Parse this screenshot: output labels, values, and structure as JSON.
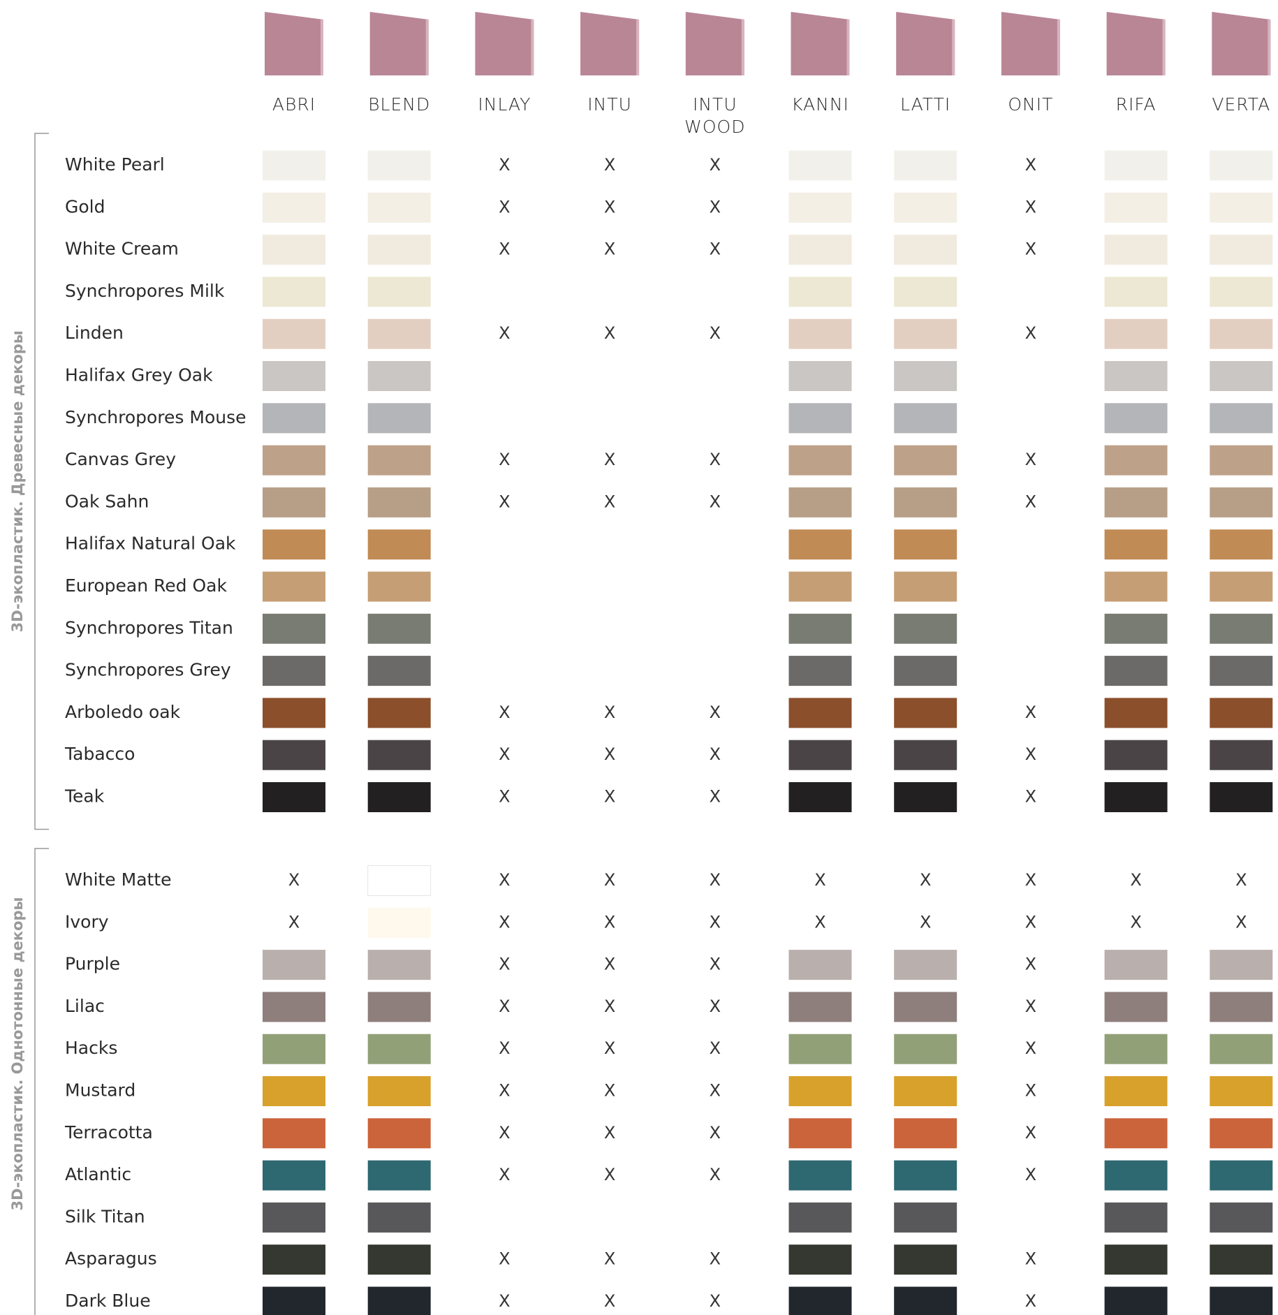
{
  "columns": [
    "ABRI",
    "BLEND",
    "INLAY",
    "INTU",
    "INTU\nWOOD",
    "KANNI",
    "LATTI",
    "ONIT",
    "RIFA",
    "VERTA"
  ],
  "groups": [
    {
      "label": "3D-экопластик. Древесные декоры",
      "rows": [
        {
          "name": "White Pearl",
          "color": "#f2f0eb",
          "cells": [
            "swatch",
            "swatch",
            "X",
            "X",
            "X",
            "swatch",
            "swatch",
            "X",
            "swatch",
            "swatch"
          ]
        },
        {
          "name": "Gold",
          "color": "#f3efe4",
          "cells": [
            "swatch",
            "swatch",
            "X",
            "X",
            "X",
            "swatch",
            "swatch",
            "X",
            "swatch",
            "swatch"
          ]
        },
        {
          "name": "White Cream",
          "color": "#f1eadf",
          "cells": [
            "swatch",
            "swatch",
            "X",
            "X",
            "X",
            "swatch",
            "swatch",
            "X",
            "swatch",
            "swatch"
          ]
        },
        {
          "name": "Synchropores Milk",
          "color": "#ece8d3",
          "cells": [
            "swatch",
            "swatch",
            null,
            null,
            null,
            "swatch",
            "swatch",
            null,
            "swatch",
            "swatch"
          ]
        },
        {
          "name": "Linden",
          "color": "#e3cfc2",
          "cells": [
            "swatch",
            "swatch",
            "X",
            "X",
            "X",
            "swatch",
            "swatch",
            "X",
            "swatch",
            "swatch"
          ]
        },
        {
          "name": "Halifax Grey Oak",
          "color": "#c9c6c3",
          "cells": [
            "swatch",
            "swatch",
            null,
            null,
            null,
            "swatch",
            "swatch",
            null,
            "swatch",
            "swatch"
          ]
        },
        {
          "name": "Synchropores Mouse",
          "color": "#b4b5b8",
          "cells": [
            "swatch",
            "swatch",
            null,
            null,
            null,
            "swatch",
            "swatch",
            null,
            "swatch",
            "swatch"
          ]
        },
        {
          "name": "Canvas Grey",
          "color": "#bea189",
          "cells": [
            "swatch",
            "swatch",
            "X",
            "X",
            "X",
            "swatch",
            "swatch",
            "X",
            "swatch",
            "swatch"
          ]
        },
        {
          "name": "Oak Sahn",
          "color": "#b79f87",
          "cells": [
            "swatch",
            "swatch",
            "X",
            "X",
            "X",
            "swatch",
            "swatch",
            "X",
            "swatch",
            "swatch"
          ]
        },
        {
          "name": "Halifax Natural Oak",
          "color": "#c18b55",
          "cells": [
            "swatch",
            "swatch",
            null,
            null,
            null,
            "swatch",
            "swatch",
            null,
            "swatch",
            "swatch"
          ]
        },
        {
          "name": "European Red Oak",
          "color": "#c69e75",
          "cells": [
            "swatch",
            "swatch",
            null,
            null,
            null,
            "swatch",
            "swatch",
            null,
            "swatch",
            "swatch"
          ]
        },
        {
          "name": "Synchropores Titan",
          "color": "#787c72",
          "cells": [
            "swatch",
            "swatch",
            null,
            null,
            null,
            "swatch",
            "swatch",
            null,
            "swatch",
            "swatch"
          ]
        },
        {
          "name": "Synchropores Grey",
          "color": "#6c6a68",
          "cells": [
            "swatch",
            "swatch",
            null,
            null,
            null,
            "swatch",
            "swatch",
            null,
            "swatch",
            "swatch"
          ]
        },
        {
          "name": "Arboledo oak",
          "color": "#8b4f2b",
          "cells": [
            "swatch",
            "swatch",
            "X",
            "X",
            "X",
            "swatch",
            "swatch",
            "X",
            "swatch",
            "swatch"
          ]
        },
        {
          "name": "Tabacco",
          "color": "#4a4446",
          "cells": [
            "swatch",
            "swatch",
            "X",
            "X",
            "X",
            "swatch",
            "swatch",
            "X",
            "swatch",
            "swatch"
          ]
        },
        {
          "name": "Teak",
          "color": "#222020",
          "cells": [
            "swatch",
            "swatch",
            "X",
            "X",
            "X",
            "swatch",
            "swatch",
            "X",
            "swatch",
            "swatch"
          ]
        }
      ]
    },
    {
      "label": "3D-экопластик. Однотонные декоры",
      "rows": [
        {
          "name": "White Matte",
          "color": "#ffffff",
          "cells": [
            "X",
            "swatch",
            "X",
            "X",
            "X",
            "X",
            "X",
            "X",
            "X",
            "X"
          ]
        },
        {
          "name": "Ivory",
          "color": "#fff8ec",
          "cells": [
            "X",
            "swatch",
            "X",
            "X",
            "X",
            "X",
            "X",
            "X",
            "X",
            "X"
          ]
        },
        {
          "name": "Purple",
          "color": "#b9afac",
          "cells": [
            "swatch",
            "swatch",
            "X",
            "X",
            "X",
            "swatch",
            "swatch",
            "X",
            "swatch",
            "swatch"
          ]
        },
        {
          "name": "Lilac",
          "color": "#8e7e7c",
          "cells": [
            "swatch",
            "swatch",
            "X",
            "X",
            "X",
            "swatch",
            "swatch",
            "X",
            "swatch",
            "swatch"
          ]
        },
        {
          "name": "Hacks",
          "color": "#92a078",
          "cells": [
            "swatch",
            "swatch",
            "X",
            "X",
            "X",
            "swatch",
            "swatch",
            "X",
            "swatch",
            "swatch"
          ]
        },
        {
          "name": "Mustard",
          "color": "#d8a12b",
          "cells": [
            "swatch",
            "swatch",
            "X",
            "X",
            "X",
            "swatch",
            "swatch",
            "X",
            "swatch",
            "swatch"
          ]
        },
        {
          "name": "Terracotta",
          "color": "#cb643a",
          "cells": [
            "swatch",
            "swatch",
            "X",
            "X",
            "X",
            "swatch",
            "swatch",
            "X",
            "swatch",
            "swatch"
          ]
        },
        {
          "name": "Atlantic",
          "color": "#2e6870",
          "cells": [
            "swatch",
            "swatch",
            "X",
            "X",
            "X",
            "swatch",
            "swatch",
            "X",
            "swatch",
            "swatch"
          ]
        },
        {
          "name": "Silk Titan",
          "color": "#58575a",
          "cells": [
            "swatch",
            "swatch",
            null,
            null,
            null,
            "swatch",
            "swatch",
            null,
            "swatch",
            "swatch"
          ]
        },
        {
          "name": "Asparagus",
          "color": "#343830",
          "cells": [
            "swatch",
            "swatch",
            "X",
            "X",
            "X",
            "swatch",
            "swatch",
            "X",
            "swatch",
            "swatch"
          ]
        },
        {
          "name": "Dark Blue",
          "color": "#22272e",
          "cells": [
            "swatch",
            "swatch",
            "X",
            "X",
            "X",
            "swatch",
            "swatch",
            "X",
            "swatch",
            "swatch"
          ]
        }
      ]
    }
  ]
}
